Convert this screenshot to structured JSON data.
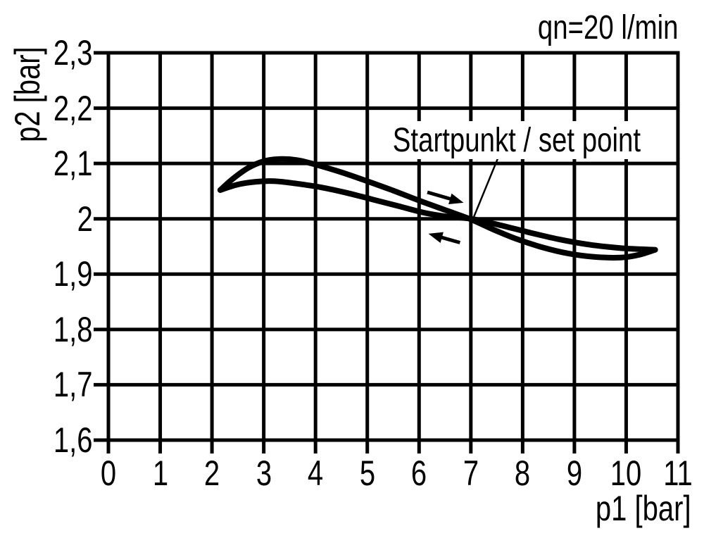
{
  "figure": {
    "flow_label": "qn=20 l/min",
    "set_point_label": "Startpunkt / set point",
    "x_axis_label": "p1 [bar]",
    "y_axis_label": "p2 [bar]"
  },
  "colors": {
    "background": "#ffffff",
    "grid": "#000000",
    "curve": "#000000",
    "text": "#000000"
  },
  "chart_data": {
    "type": "line",
    "title": "qn=20 l/min",
    "xlabel": "p1 [bar]",
    "ylabel": "p2 [bar]",
    "xlim": [
      0,
      11
    ],
    "ylim": [
      1.6,
      2.3
    ],
    "grid": true,
    "legend": "none",
    "x_ticks": [
      0,
      1,
      2,
      3,
      4,
      5,
      6,
      7,
      8,
      9,
      10,
      11
    ],
    "x_tick_labels": [
      "0",
      "1",
      "2",
      "3",
      "4",
      "5",
      "6",
      "7",
      "8",
      "9",
      "10",
      "11"
    ],
    "y_ticks": [
      2.3,
      2.2,
      2.1,
      2.0,
      1.9,
      1.8,
      1.7,
      1.6
    ],
    "y_tick_labels": [
      "2,3",
      "2,2",
      "2,1",
      "2",
      "1,9",
      "1,8",
      "1,7",
      "1,6"
    ],
    "series": [
      {
        "name": "p1-increasing-branch",
        "direction": "p1 increasing (right arrow)",
        "points": [
          [
            2.16,
            2.052
          ],
          [
            2.4,
            2.072
          ],
          [
            2.7,
            2.092
          ],
          [
            3.0,
            2.104
          ],
          [
            3.3,
            2.108
          ],
          [
            3.65,
            2.106
          ],
          [
            4.0,
            2.098
          ],
          [
            4.5,
            2.084
          ],
          [
            5.0,
            2.068
          ],
          [
            5.5,
            2.051
          ],
          [
            6.0,
            2.033
          ],
          [
            6.5,
            2.016
          ],
          [
            7.0,
            1.999
          ],
          [
            7.45,
            1.98
          ],
          [
            7.9,
            1.963
          ],
          [
            8.4,
            1.948
          ],
          [
            8.9,
            1.937
          ],
          [
            9.4,
            1.931
          ],
          [
            9.9,
            1.93
          ],
          [
            10.25,
            1.935
          ],
          [
            10.56,
            1.944
          ]
        ]
      },
      {
        "name": "p1-decreasing-branch",
        "direction": "p1 decreasing (left arrow)",
        "points": [
          [
            2.16,
            2.052
          ],
          [
            2.5,
            2.062
          ],
          [
            2.85,
            2.067
          ],
          [
            3.2,
            2.068
          ],
          [
            3.6,
            2.064
          ],
          [
            4.1,
            2.057
          ],
          [
            4.6,
            2.047
          ],
          [
            5.1,
            2.035
          ],
          [
            5.6,
            2.023
          ],
          [
            6.1,
            2.011
          ],
          [
            6.55,
            2.004
          ],
          [
            7.0,
            2.0
          ],
          [
            7.5,
            1.99
          ],
          [
            8.1,
            1.976
          ],
          [
            8.7,
            1.963
          ],
          [
            9.3,
            1.953
          ],
          [
            9.9,
            1.947
          ],
          [
            10.3,
            1.945
          ],
          [
            10.56,
            1.944
          ]
        ]
      }
    ],
    "set_point": [
      7.0,
      2.0
    ],
    "annotations": {
      "set_point_label": "Startpunkt / set point",
      "leader_line": [
        [
          7.52,
          2.109
        ],
        [
          7.06,
          2.004
        ]
      ],
      "arrow_increasing": [
        [
          6.16,
          2.048
        ],
        [
          6.86,
          2.029
        ]
      ],
      "arrow_decreasing": [
        [
          6.79,
          1.957
        ],
        [
          6.18,
          1.973
        ]
      ]
    }
  }
}
